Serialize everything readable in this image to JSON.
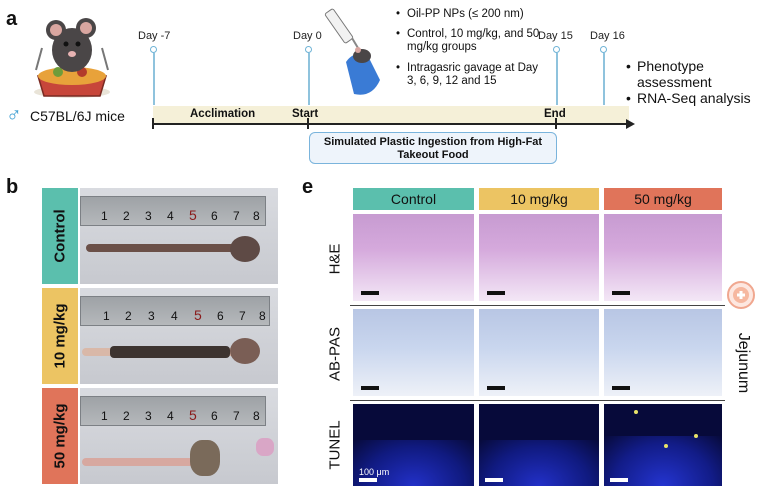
{
  "panels": {
    "a": "a",
    "b": "b",
    "e": "e"
  },
  "timeline": {
    "mouse_label": "C57BL/6J mice",
    "male_symbol": "♂",
    "days": [
      "Day -7",
      "Day 0",
      "Day 15",
      "Day 16"
    ],
    "phases": [
      "Acclimation",
      "Start",
      "End"
    ],
    "box_text": "Simulated Plastic Ingestion from High-Fat Takeout Food",
    "bullets": [
      "Oil-PP NPs (≤ 200 nm)",
      "Control, 10 mg/kg, and 50 mg/kg groups",
      "Intragasric gavage at Day 3, 6, 9, 12 and 15"
    ],
    "outcomes": [
      "Phenotype assessment",
      "RNA-Seq analysis"
    ]
  },
  "groups": [
    "Control",
    "10 mg/kg",
    "50 mg/kg"
  ],
  "group_colors": [
    "#5bbfad",
    "#ecc463",
    "#e0745a"
  ],
  "ruler_numbers": [
    "1",
    "2",
    "3",
    "4",
    "5",
    "6",
    "7",
    "8"
  ],
  "stains": [
    "H&E",
    "AB-PAS",
    "TUNEL"
  ],
  "tissue": "Jejunum",
  "scale_label": "100 μm"
}
